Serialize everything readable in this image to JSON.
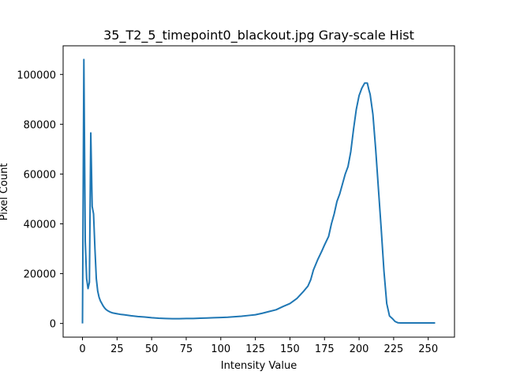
{
  "chart_data": {
    "type": "line",
    "title": "35_T2_5_timepoint0_blackout.jpg Gray-scale Hist",
    "xlabel": "Intensity Value",
    "ylabel": "Pixel Count",
    "xlim": [
      -14,
      269
    ],
    "ylim": [
      -5500,
      111500
    ],
    "xticks": [
      0,
      25,
      50,
      75,
      100,
      125,
      150,
      175,
      200,
      225,
      250
    ],
    "yticks": [
      0,
      20000,
      40000,
      60000,
      80000,
      100000
    ],
    "grid": false,
    "legend": "none",
    "series": [
      {
        "color": "#1f77b4",
        "x": [
          0,
          1,
          2,
          3,
          4,
          5,
          6,
          7,
          8,
          9,
          10,
          11,
          12,
          13,
          14,
          15,
          16,
          17,
          18,
          19,
          20,
          22,
          25,
          28,
          30,
          35,
          40,
          45,
          50,
          55,
          60,
          65,
          70,
          75,
          80,
          85,
          90,
          95,
          100,
          105,
          110,
          115,
          120,
          125,
          130,
          135,
          140,
          145,
          150,
          155,
          160,
          163,
          165,
          167,
          170,
          173,
          175,
          178,
          180,
          182,
          184,
          186,
          188,
          190,
          192,
          194,
          196,
          198,
          200,
          202,
          204,
          206,
          207,
          208,
          210,
          212,
          214,
          216,
          218,
          220,
          222,
          224,
          226,
          228,
          230,
          232,
          234,
          240,
          245,
          250,
          255
        ],
        "values": [
          0,
          106000,
          33000,
          18000,
          14000,
          16500,
          76500,
          47000,
          44000,
          30000,
          18000,
          13000,
          10500,
          9000,
          8000,
          7000,
          6200,
          5600,
          5200,
          4900,
          4600,
          4200,
          3900,
          3600,
          3500,
          3100,
          2800,
          2600,
          2300,
          2100,
          2000,
          1900,
          1900,
          2000,
          2000,
          2100,
          2200,
          2300,
          2400,
          2500,
          2700,
          2900,
          3200,
          3500,
          4100,
          4800,
          5500,
          6800,
          8000,
          10000,
          13000,
          15000,
          17500,
          21500,
          25500,
          29000,
          31500,
          35000,
          40000,
          44000,
          49000,
          52000,
          56000,
          60000,
          63000,
          69000,
          78000,
          86000,
          91500,
          94500,
          96500,
          96500,
          94000,
          92000,
          84000,
          70000,
          54000,
          38000,
          21000,
          8000,
          3000,
          2000,
          800,
          300,
          200,
          200,
          200,
          200,
          200,
          200,
          200
        ]
      }
    ]
  }
}
